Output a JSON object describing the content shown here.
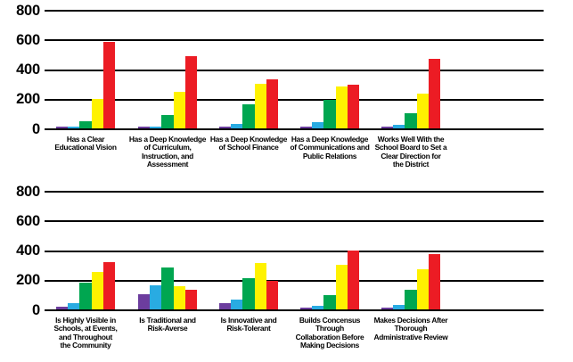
{
  "figure": {
    "background": "#ffffff",
    "gridline_color": "#000000",
    "text_color": "#000000"
  },
  "chart_data": [
    {
      "type": "bar",
      "title": "",
      "xlabel": "",
      "ylabel": "",
      "ylim": [
        0,
        800
      ],
      "yticks": [
        800,
        600,
        400,
        200,
        0
      ],
      "grid": "horizontal",
      "legend": "none",
      "categories": [
        [
          "Has a Clear",
          "Educational Vision"
        ],
        [
          "Has a Deep Knowledge",
          "of Curriculum,",
          "Instruction, and",
          "Assessment"
        ],
        [
          "Has a Deep Knowledge",
          "of School Finance"
        ],
        [
          "Has a Deep Knowledge",
          "of Communications and",
          "Public Relations"
        ],
        [
          "Works Well With the",
          "School Board to Set a",
          "Clear Direction for",
          "the District"
        ]
      ],
      "series": [
        {
          "name": "purple",
          "color": "#6C3D9E",
          "values": [
            15,
            10,
            15,
            10,
            15
          ]
        },
        {
          "name": "blue",
          "color": "#29ABE2",
          "values": [
            10,
            10,
            30,
            45,
            25
          ]
        },
        {
          "name": "green",
          "color": "#00A650",
          "values": [
            50,
            90,
            165,
            190,
            100
          ]
        },
        {
          "name": "yellow",
          "color": "#FFF200",
          "values": [
            200,
            245,
            300,
            285,
            235
          ]
        },
        {
          "name": "red",
          "color": "#EC1C24",
          "values": [
            585,
            490,
            330,
            295,
            470
          ]
        }
      ]
    },
    {
      "type": "bar",
      "title": "",
      "xlabel": "",
      "ylabel": "",
      "ylim": [
        0,
        800
      ],
      "yticks": [
        800,
        600,
        400,
        200,
        0
      ],
      "grid": "horizontal",
      "legend": "none",
      "categories": [
        [
          "Is Highly Visible in",
          "Schools, at Events,",
          "and Throughout",
          "the Community"
        ],
        [
          "Is Traditional and",
          "Risk-Averse"
        ],
        [
          "Is Innovative and",
          "Risk-Tolerant"
        ],
        [
          "Builds Concensus",
          "Through",
          "Collaboration Before",
          "Making Decisions"
        ],
        [
          "Makes Decisions After",
          "Thorough",
          "Administrative Review"
        ]
      ],
      "series": [
        {
          "name": "purple",
          "color": "#6C3D9E",
          "values": [
            20,
            100,
            45,
            10,
            10
          ]
        },
        {
          "name": "blue",
          "color": "#29ABE2",
          "values": [
            45,
            160,
            65,
            25,
            30
          ]
        },
        {
          "name": "green",
          "color": "#00A650",
          "values": [
            180,
            280,
            210,
            95,
            135
          ]
        },
        {
          "name": "yellow",
          "color": "#FFF200",
          "values": [
            255,
            155,
            310,
            300,
            270
          ]
        },
        {
          "name": "red",
          "color": "#EC1C24",
          "values": [
            320,
            130,
            190,
            400,
            375
          ]
        }
      ]
    }
  ]
}
